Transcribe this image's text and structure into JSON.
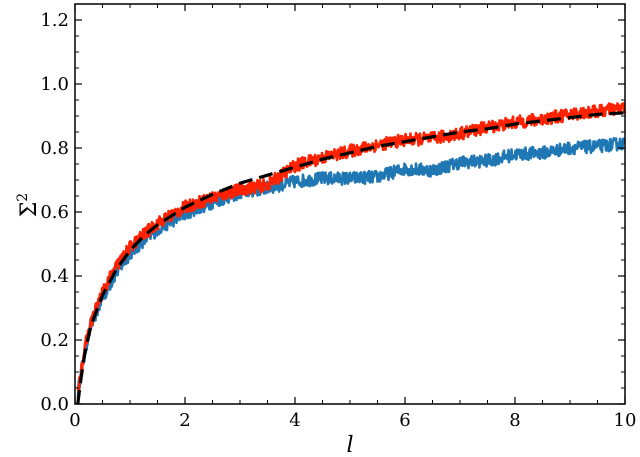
{
  "chart_data": {
    "type": "line",
    "xlabel": "l",
    "ylabel": "Σ",
    "ylabel_superscript": "2",
    "xlim": [
      0,
      10
    ],
    "ylim": [
      0,
      1.25
    ],
    "xticks": [
      0,
      2,
      4,
      6,
      8,
      10
    ],
    "xtick_labels": [
      "0",
      "2",
      "4",
      "6",
      "8",
      "10"
    ],
    "yticks": [
      0,
      0.2,
      0.4,
      0.6,
      0.8,
      1.0,
      1.2
    ],
    "ytick_labels": [
      "0.0",
      "0.2",
      "0.4",
      "0.6",
      "0.8",
      "1.0",
      "1.2"
    ],
    "grid": false,
    "x": [
      0.05,
      0.1,
      0.2,
      0.3,
      0.5,
      0.75,
      1.0,
      1.25,
      1.5,
      2.0,
      2.5,
      3.0,
      3.5,
      4.0,
      4.5,
      5.0,
      5.5,
      6.0,
      6.5,
      7.0,
      7.5,
      8.0,
      8.5,
      9.0,
      9.5,
      10.0
    ],
    "series": [
      {
        "color": "#1f77b4",
        "noise": 0.02,
        "values": [
          0.03,
          0.09,
          0.18,
          0.25,
          0.33,
          0.41,
          0.47,
          0.51,
          0.545,
          0.595,
          0.63,
          0.66,
          0.675,
          0.695,
          0.705,
          0.705,
          0.71,
          0.735,
          0.73,
          0.755,
          0.76,
          0.78,
          0.785,
          0.8,
          0.805,
          0.815
        ]
      },
      {
        "color": "#ff2200",
        "noise": 0.02,
        "values": [
          0.03,
          0.1,
          0.19,
          0.26,
          0.35,
          0.43,
          0.49,
          0.53,
          0.565,
          0.615,
          0.645,
          0.67,
          0.685,
          0.745,
          0.77,
          0.79,
          0.81,
          0.825,
          0.83,
          0.845,
          0.865,
          0.88,
          0.89,
          0.905,
          0.915,
          0.925
        ]
      },
      {
        "color": "#000000",
        "style": "dashed",
        "values": [
          0.0,
          0.07,
          0.18,
          0.25,
          0.34,
          0.42,
          0.48,
          0.525,
          0.56,
          0.615,
          0.655,
          0.69,
          0.715,
          0.74,
          0.765,
          0.785,
          0.805,
          0.82,
          0.835,
          0.85,
          0.86,
          0.875,
          0.885,
          0.895,
          0.905,
          0.91
        ]
      }
    ]
  }
}
